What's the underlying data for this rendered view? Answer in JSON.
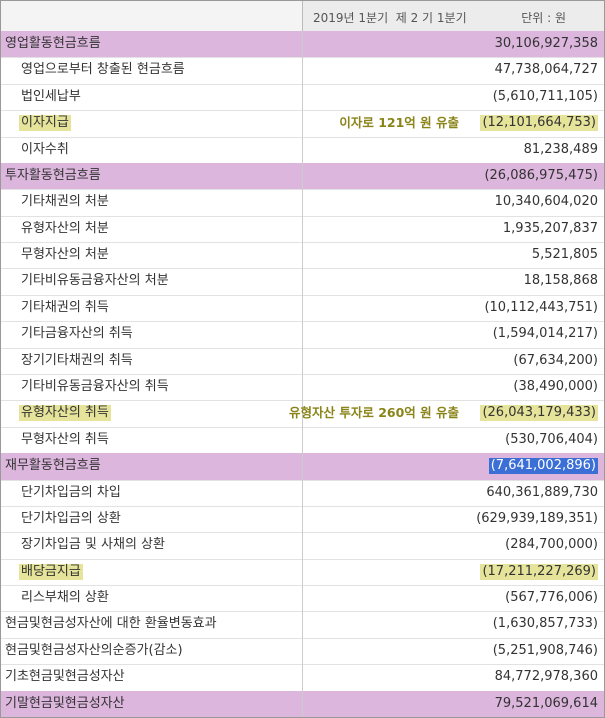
{
  "header": {
    "period": "2019년 1분기  제 2 기 1분기",
    "unit": "단위 : 원"
  },
  "rows": [
    {
      "label": "영업활동현금흐름",
      "value": "30,106,927,358"
    },
    {
      "label": "영업으로부터 창출된 현금흐름",
      "value": "47,738,064,727"
    },
    {
      "label": "법인세납부",
      "value": "(5,610,711,105)"
    },
    {
      "label": "이자지급",
      "note": "이자로 121억 원 유출",
      "value": "(12,101,664,753)"
    },
    {
      "label": "이자수취",
      "value": "81,238,489"
    },
    {
      "label": "투자활동현금흐름",
      "value": "(26,086,975,475)"
    },
    {
      "label": "기타채권의 처분",
      "value": "10,340,604,020"
    },
    {
      "label": "유형자산의 처분",
      "value": "1,935,207,837"
    },
    {
      "label": "무형자산의 처분",
      "value": "5,521,805"
    },
    {
      "label": "기타비유동금융자산의 처분",
      "value": "18,158,868"
    },
    {
      "label": "기타채권의 취득",
      "value": "(10,112,443,751)"
    },
    {
      "label": "기타금융자산의 취득",
      "value": "(1,594,014,217)"
    },
    {
      "label": "장기기타채권의 취득",
      "value": "(67,634,200)"
    },
    {
      "label": "기타비유동금융자산의 취득",
      "value": "(38,490,000)"
    },
    {
      "label": "유형자산의 취득",
      "note": "유형자산 투자로 260억 원 유출",
      "value": "(26,043,179,433)"
    },
    {
      "label": "무형자산의 취득",
      "value": "(530,706,404)"
    },
    {
      "label": "재무활동현금흐름",
      "value": "(7,641,002,896)"
    },
    {
      "label": "단기차입금의 차입",
      "value": "640,361,889,730"
    },
    {
      "label": "단기차입금의 상환",
      "value": "(629,939,189,351)"
    },
    {
      "label": "장기차입금 및 사채의 상환",
      "value": "(284,700,000)"
    },
    {
      "label": "배당금지급",
      "value": "(17,211,227,269)"
    },
    {
      "label": "리스부채의 상환",
      "value": "(567,776,006)"
    },
    {
      "label": "현금및현금성자산에 대한 환율변동효과",
      "value": "(1,630,857,733)"
    },
    {
      "label": "현금및현금성자산의순증가(감소)",
      "value": "(5,251,908,746)"
    },
    {
      "label": "기초현금및현금성자산",
      "value": "84,772,978,360"
    },
    {
      "label": "기말현금및현금성자산",
      "value": "79,521,069,614"
    }
  ]
}
